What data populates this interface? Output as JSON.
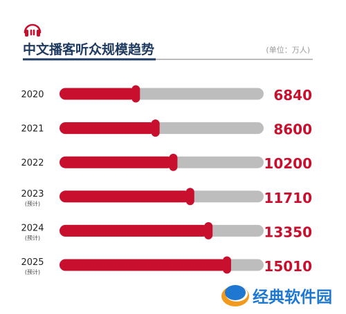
{
  "header": {
    "title": "中文播客听众规模趋势",
    "unit": "(单位：万人)",
    "icon": "headphones-icon"
  },
  "colors": {
    "accent": "#c8102e",
    "track": "#bdbdbd",
    "title": "#1f3a5f",
    "rule": "#1f3a5f",
    "rule_gray": "#bbbbbb"
  },
  "chart_data": {
    "type": "bar",
    "orientation": "horizontal",
    "title": "中文播客听众规模趋势",
    "unit": "(单位：万人)",
    "categories": [
      "2020",
      "2021",
      "2022",
      "2023",
      "2024",
      "2025"
    ],
    "category_notes": [
      "",
      "",
      "",
      "(预计)",
      "(预计)",
      "(预计)"
    ],
    "values": [
      6840,
      8600,
      10200,
      11710,
      13350,
      15010
    ],
    "data_labels": [
      "6840",
      "8600",
      "10200",
      "11710",
      "13350",
      "15010"
    ],
    "xlim": [
      0,
      18300
    ],
    "grid": false,
    "legend": "none"
  },
  "watermark": {
    "text": "经典软件园",
    "icon": "site-logo-icon"
  }
}
